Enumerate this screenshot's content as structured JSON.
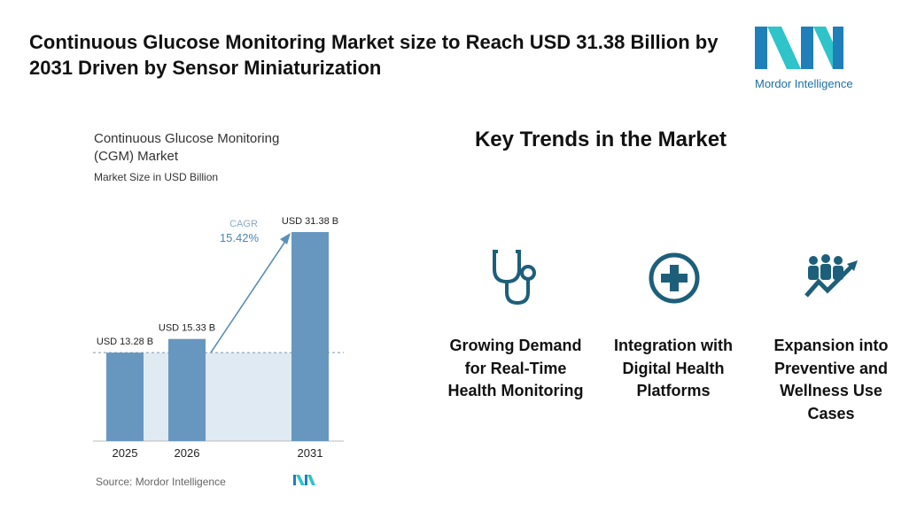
{
  "header": {
    "title": "Continuous Glucose Monitoring Market size to Reach USD 31.38 Billion by 2031 Driven by Sensor Miniaturization",
    "logo": "Mordor Intelligence"
  },
  "chart_data": {
    "type": "bar",
    "title": "Continuous Glucose Monitoring (CGM) Market",
    "subtitle": "Market Size in USD Billion",
    "categories": [
      "2025",
      "2026",
      "2031"
    ],
    "values": [
      13.28,
      15.33,
      31.38
    ],
    "value_labels": [
      "USD 13.28 B",
      "USD 15.33 B",
      "USD 31.38 B"
    ],
    "color": "#6797bf",
    "annotation_label": "CAGR",
    "annotation_value": "15.42%",
    "source": "Source: Mordor Intelligence"
  },
  "trends": {
    "title": "Key Trends in the Market",
    "items": [
      "Growing Demand for Real-Time Health Monitoring",
      "Integration with Digital Health Platforms",
      "Expansion into Preventive and Wellness Use Cases"
    ]
  }
}
